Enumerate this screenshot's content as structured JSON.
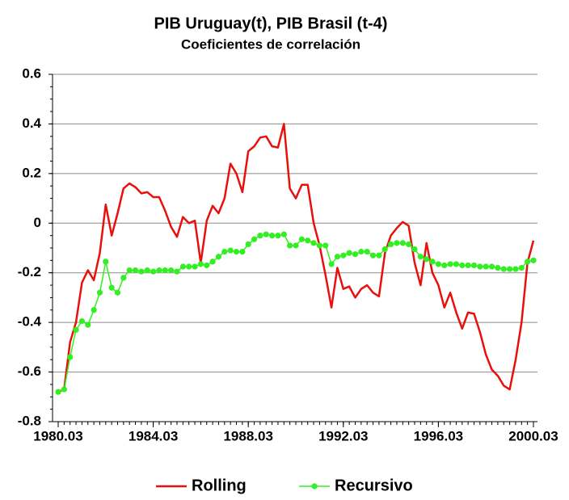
{
  "chart_data": {
    "type": "line",
    "title": "PIB Uruguay(t), PIB Brasil (t-4)",
    "subtitle": "Coeficientes de correlación",
    "categories": [
      "1980.03",
      null,
      null,
      null,
      null,
      null,
      null,
      null,
      null,
      null,
      null,
      null,
      null,
      null,
      null,
      null,
      "1984.03",
      null,
      null,
      null,
      null,
      null,
      null,
      null,
      null,
      null,
      null,
      null,
      null,
      null,
      null,
      null,
      "1988.03",
      null,
      null,
      null,
      null,
      null,
      null,
      null,
      null,
      null,
      null,
      null,
      null,
      null,
      null,
      null,
      "1992.03",
      null,
      null,
      null,
      null,
      null,
      null,
      null,
      null,
      null,
      null,
      null,
      null,
      null,
      null,
      null,
      "1996.03",
      null,
      null,
      null,
      null,
      null,
      null,
      null,
      null,
      null,
      null,
      null,
      null,
      null,
      null,
      null,
      "2000.03"
    ],
    "series": [
      {
        "name": "Rolling",
        "color": "#e8100c",
        "marker": false,
        "values": [
          -0.68,
          -0.67,
          -0.48,
          -0.4,
          -0.24,
          -0.19,
          -0.23,
          -0.12,
          0.075,
          -0.05,
          0.04,
          0.14,
          0.16,
          0.145,
          0.12,
          0.125,
          0.105,
          0.105,
          0.05,
          -0.015,
          -0.055,
          0.025,
          0.0,
          0.01,
          -0.16,
          0.01,
          0.07,
          0.04,
          0.1,
          0.24,
          0.2,
          0.125,
          0.29,
          0.31,
          0.345,
          0.35,
          0.31,
          0.305,
          0.4,
          0.14,
          0.1,
          0.155,
          0.155,
          0.0,
          -0.09,
          -0.21,
          -0.34,
          -0.18,
          -0.265,
          -0.255,
          -0.3,
          -0.265,
          -0.25,
          -0.28,
          -0.295,
          -0.12,
          -0.05,
          -0.02,
          0.005,
          -0.01,
          -0.16,
          -0.25,
          -0.08,
          -0.2,
          -0.25,
          -0.34,
          -0.28,
          -0.36,
          -0.425,
          -0.36,
          -0.365,
          -0.44,
          -0.53,
          -0.59,
          -0.615,
          -0.655,
          -0.67,
          -0.55,
          -0.4,
          -0.16,
          -0.07
        ]
      },
      {
        "name": "Recursivo",
        "color": "#33ee22",
        "marker": true,
        "values": [
          -0.68,
          -0.67,
          -0.54,
          -0.43,
          -0.395,
          -0.41,
          -0.35,
          -0.28,
          -0.155,
          -0.26,
          -0.28,
          -0.22,
          -0.19,
          -0.19,
          -0.195,
          -0.19,
          -0.195,
          -0.19,
          -0.19,
          -0.19,
          -0.195,
          -0.175,
          -0.175,
          -0.175,
          -0.165,
          -0.17,
          -0.155,
          -0.135,
          -0.115,
          -0.11,
          -0.115,
          -0.115,
          -0.085,
          -0.065,
          -0.05,
          -0.045,
          -0.05,
          -0.05,
          -0.045,
          -0.09,
          -0.09,
          -0.065,
          -0.07,
          -0.08,
          -0.09,
          -0.09,
          -0.165,
          -0.135,
          -0.13,
          -0.12,
          -0.125,
          -0.115,
          -0.115,
          -0.13,
          -0.13,
          -0.105,
          -0.085,
          -0.08,
          -0.08,
          -0.085,
          -0.105,
          -0.135,
          -0.145,
          -0.155,
          -0.165,
          -0.17,
          -0.165,
          -0.165,
          -0.17,
          -0.17,
          -0.17,
          -0.175,
          -0.175,
          -0.175,
          -0.18,
          -0.185,
          -0.185,
          -0.185,
          -0.18,
          -0.155,
          -0.15
        ]
      }
    ],
    "ylim": [
      -0.8,
      0.6
    ],
    "yticks": [
      -0.8,
      -0.6,
      -0.4,
      -0.2,
      0,
      0.2,
      0.4,
      0.6
    ],
    "grid": true,
    "legend": "bottom"
  }
}
